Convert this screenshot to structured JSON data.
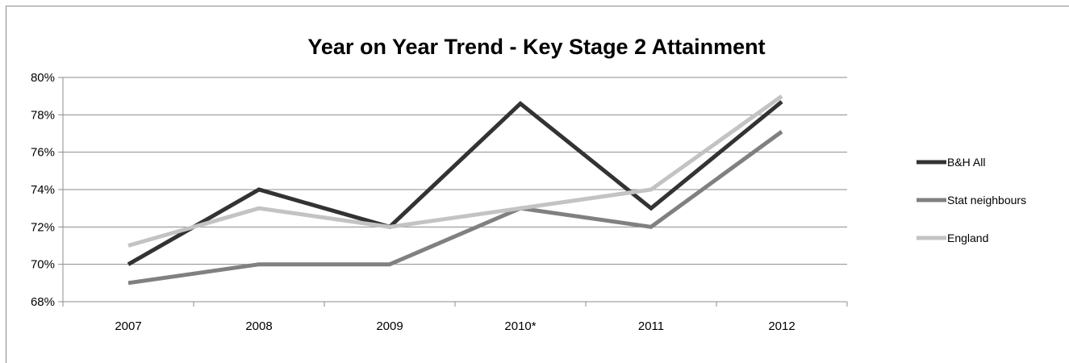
{
  "chart_data": {
    "type": "line",
    "title": "Year on Year Trend - Key Stage 2 Attainment",
    "xlabel": "",
    "ylabel": "",
    "categories": [
      "2007",
      "2008",
      "2009",
      "2010*",
      "2011",
      "2012"
    ],
    "ylim": [
      0.68,
      0.8
    ],
    "y_ticks": [
      0.68,
      0.7,
      0.72,
      0.74,
      0.76,
      0.78,
      0.8
    ],
    "y_tick_labels": [
      "68%",
      "70%",
      "72%",
      "74%",
      "76%",
      "78%",
      "80%"
    ],
    "grid": true,
    "legend_position": "right",
    "series": [
      {
        "name": "B&H All",
        "color": "#333333",
        "values": [
          0.7,
          0.74,
          0.72,
          0.786,
          0.73,
          0.787
        ]
      },
      {
        "name": "Stat neighbours",
        "color": "#808080",
        "values": [
          0.69,
          0.7,
          0.7,
          0.73,
          0.72,
          0.771
        ]
      },
      {
        "name": "England",
        "color": "#c3c3c3",
        "values": [
          0.71,
          0.73,
          0.72,
          0.73,
          0.74,
          0.79
        ]
      }
    ]
  }
}
